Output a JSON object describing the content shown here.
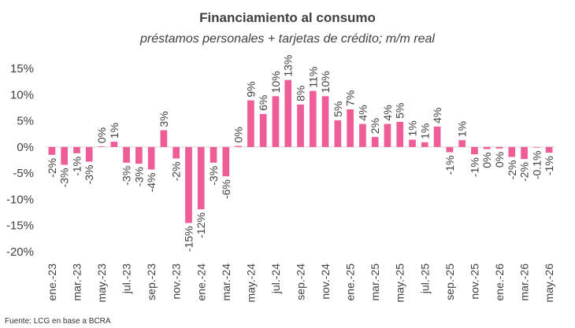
{
  "chart_data": {
    "type": "bar",
    "title": "Financiamiento al consumo",
    "subtitle": "préstamos personales + tarjetas de crédito; m/m real",
    "source": "Fuente: LCG en base a BCRA",
    "bar_color": "#ee5d97",
    "ylim": [
      -20,
      15
    ],
    "yticks": [
      -20,
      -15,
      -10,
      -5,
      0,
      5,
      10,
      15
    ],
    "ytick_labels": [
      "-20%",
      "-15%",
      "-10%",
      "-5%",
      "0%",
      "5%",
      "10%",
      "15%"
    ],
    "grid": false,
    "categories": [
      "ene.-23",
      "feb.-23",
      "mar.-23",
      "abr.-23",
      "may.-23",
      "jun.-23",
      "jul.-23",
      "ago.-23",
      "sep.-23",
      "oct.-23",
      "nov.-23",
      "dic.-23",
      "ene.-24",
      "feb.-24",
      "mar.-24",
      "abr.-24",
      "may.-24",
      "jun.-24",
      "jul.-24",
      "ago.-24",
      "sep.-24",
      "oct.-24",
      "nov.-24",
      "dic.-24",
      "ene.-25",
      "feb.-25",
      "mar.-25",
      "abr.-25",
      "may.-25",
      "jun.-25",
      "jul.-25",
      "ago.-25",
      "sep.-25",
      "oct.-25",
      "nov.-25",
      "dic.-25",
      "ene.-26",
      "feb.-26",
      "mar.-26",
      "abr.-26",
      "may.-26"
    ],
    "x_tick_labels": [
      "ene.-23",
      "",
      "mar.-23",
      "",
      "may.-23",
      "",
      "jul.-23",
      "",
      "sep.-23",
      "",
      "nov.-23",
      "",
      "ene.-24",
      "",
      "mar.-24",
      "",
      "may.-24",
      "",
      "jul.-24",
      "",
      "sep.-24",
      "",
      "nov.-24",
      "",
      "ene.-25",
      "",
      "mar.-25",
      "",
      "may.-25",
      "",
      "jul.-25",
      "",
      "sep.-25",
      "",
      "nov.-25",
      "",
      "ene.-26",
      "",
      "mar.-26",
      "",
      "may.-26"
    ],
    "values": [
      -1.5,
      -3.4,
      -1.2,
      -2.8,
      0.1,
      1.0,
      -3.0,
      -3.2,
      -4.3,
      3.2,
      -2.2,
      -14.5,
      -11.9,
      -3.0,
      -5.6,
      0.2,
      8.9,
      6.3,
      9.7,
      12.8,
      8.1,
      10.7,
      9.7,
      5.1,
      7.2,
      4.4,
      1.9,
      4.4,
      4.8,
      1.4,
      0.9,
      3.9,
      -1.0,
      1.3,
      -1.4,
      -0.4,
      -0.3,
      -1.9,
      -2.3,
      -0.1,
      -1.1
    ],
    "data_labels": [
      "-2%",
      "-3%",
      "-1%",
      "-3%",
      "0%",
      "1%",
      "-3%",
      "-3%",
      "-4%",
      "3%",
      "-2%",
      "-15%",
      "-12%",
      "-3%",
      "-6%",
      "0%",
      "9%",
      "6%",
      "10%",
      "13%",
      "8%",
      "11%",
      "10%",
      "5%",
      "7%",
      "4%",
      "2%",
      "4%",
      "5%",
      "1%",
      "1%",
      "4%",
      "-1%",
      "1%",
      "-1%",
      "0%",
      "0%",
      "-2%",
      "-2%",
      "-0.1%",
      "-1%"
    ]
  }
}
